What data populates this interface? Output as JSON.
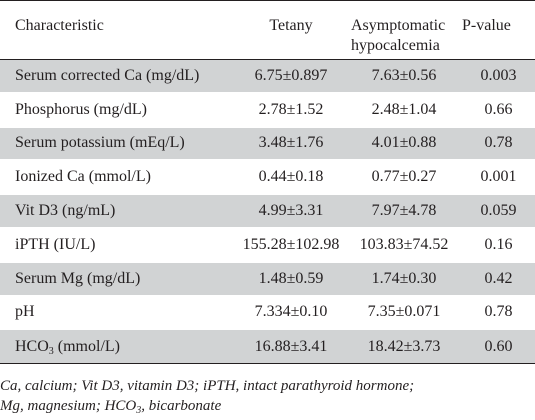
{
  "table": {
    "headers": {
      "characteristic": "Characteristic",
      "tetany": "Tetany",
      "asymptomatic_line1": "Asymptomatic",
      "asymptomatic_line2": "hypocalcemia",
      "pvalue": "P-value"
    },
    "rows": [
      {
        "name": "Serum corrected Ca (mg/dL)",
        "tetany": "6.75±0.897",
        "asymptomatic": "7.63±0.56",
        "p": "0.003"
      },
      {
        "name": "Phosphorus (mg/dL)",
        "tetany": "2.78±1.52",
        "asymptomatic": "2.48±1.04",
        "p": "0.66"
      },
      {
        "name": "Serum potassium (mEq/L)",
        "tetany": "3.48±1.76",
        "asymptomatic": "4.01±0.88",
        "p": "0.78"
      },
      {
        "name": "Ionized Ca (mmol/L)",
        "tetany": "0.44±0.18",
        "asymptomatic": "0.77±0.27",
        "p": "0.001"
      },
      {
        "name": "Vit D3 (ng/mL)",
        "tetany": "4.99±3.31",
        "asymptomatic": "7.97±4.78",
        "p": "0.059"
      },
      {
        "name": "iPTH (IU/L)",
        "tetany": "155.28±102.98",
        "asymptomatic": "103.83±74.52",
        "p": "0.16"
      },
      {
        "name": "Serum Mg (mg/dL)",
        "tetany": "1.48±0.59",
        "asymptomatic": "1.74±0.30",
        "p": "0.42"
      },
      {
        "name": "pH",
        "tetany": "7.334±0.10",
        "asymptomatic": "7.35±0.071",
        "p": "0.78"
      },
      {
        "name_prefix": "HCO",
        "name_sub": "3",
        "name_suffix": " (mmol/L)",
        "tetany": "16.88±3.41",
        "asymptomatic": "18.42±3.73",
        "p": "0.60"
      }
    ]
  },
  "footnote": {
    "line1": "Ca, calcium; Vit D3, vitamin D3; iPTH, intact parathyroid hormone;",
    "line2_prefix": "Mg, magnesium; HCO",
    "line2_sub": "3",
    "line2_suffix": ", bicarbonate"
  },
  "colors": {
    "shade": "#d1d3d4",
    "text": "#231f20"
  }
}
